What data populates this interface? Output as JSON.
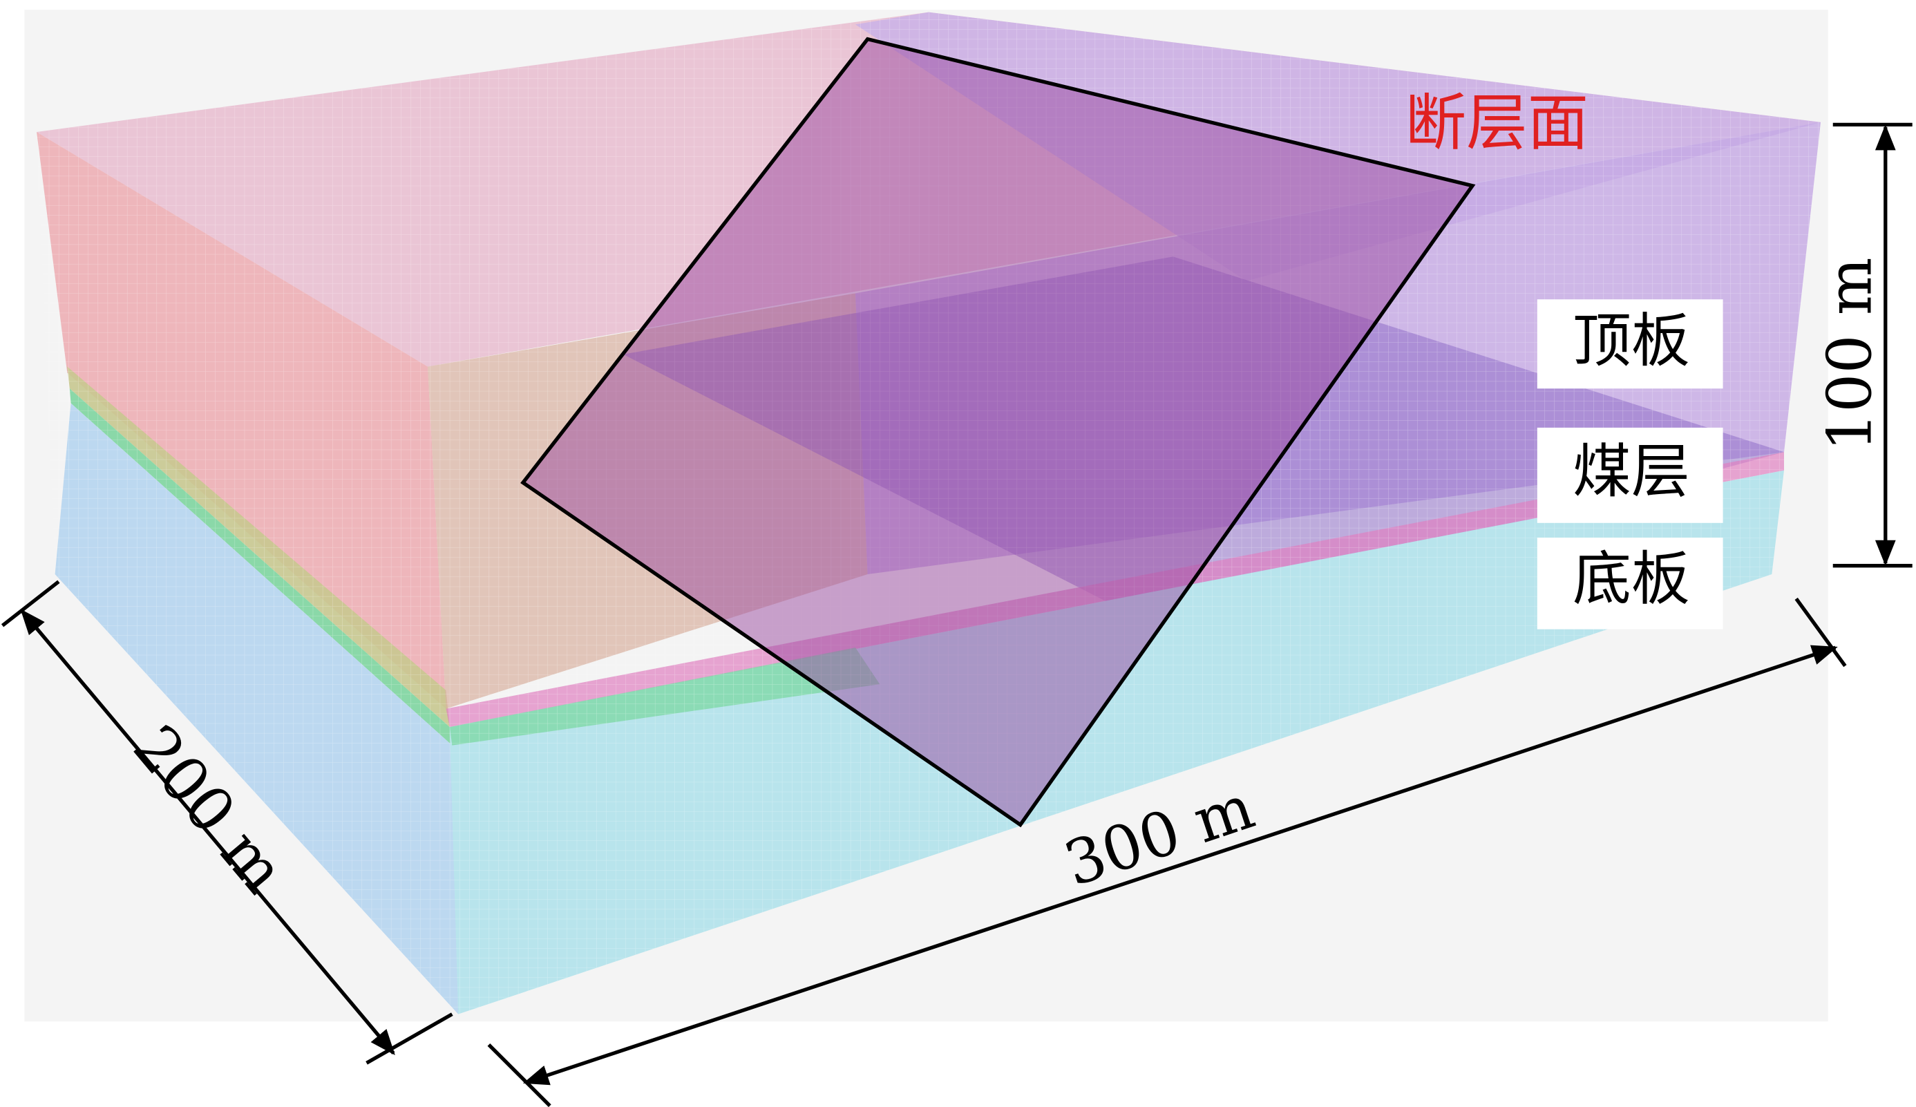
{
  "labels": {
    "fault": "断层面",
    "roof": "顶板",
    "coal": "煤层",
    "floor": "底板"
  },
  "dimensions": {
    "height": "100 m",
    "width": "200 m",
    "length": "300 m"
  }
}
